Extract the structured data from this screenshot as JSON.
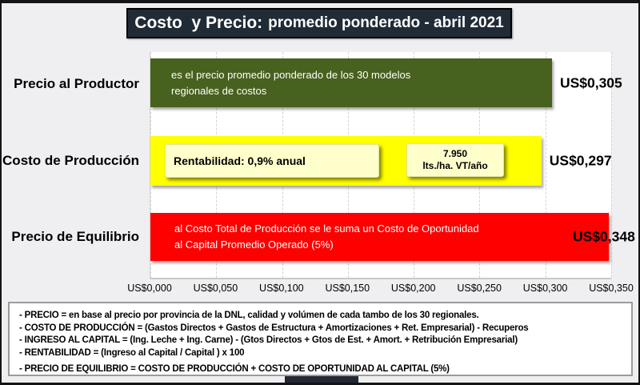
{
  "title": {
    "main": "Costo  y Precio:",
    "sub": "promedio ponderado - abril 2021"
  },
  "chart_data": {
    "type": "bar",
    "orientation": "horizontal",
    "title": "Costo  y Precio: promedio ponderado - abril 2021",
    "categories": [
      "Precio al Productor",
      "Costo de Producción",
      "Precio de Equilibrio"
    ],
    "values": [
      0.305,
      0.297,
      0.348
    ],
    "value_labels": [
      "US$0,305",
      "US$0,297",
      "US$0,348"
    ],
    "bar_colors": [
      "#47611e",
      "#ffff00",
      "#fe0000"
    ],
    "xlim": [
      0,
      0.35
    ],
    "x_ticks": [
      "US$0,000",
      "US$0,050",
      "US$0,100",
      "US$0,150",
      "US$0,200",
      "US$0,250",
      "US$0,300",
      "US$0,350"
    ],
    "grid": "vertical-dashed",
    "legend": "none",
    "annotations": {
      "bar1_note": "es el precio promedio ponderado de los 30 modelos\nregionales de costos",
      "bar2_box1": "Rentabilidad: 0,9% anual",
      "bar2_box2": "7.950\nlts./ha. VT/año",
      "bar3_note": "al Costo Total de Producción se le suma un Costo de Oportunidad\nal Capital Promedio Operado (5%)"
    }
  },
  "footnotes": {
    "lines": [
      "- PRECIO = en base al precio por provincia de la DNL, calidad y volúmen de cada tambo de los 30 regionales.",
      "- COSTO DE PRODUCCIÓN = (Gastos Directos + Gastos de Estructura + Amortizaciones + Ret. Empresarial) - Recuperos",
      "- INGRESO AL CAPITAL = (Ing. Leche + Ing. Carne) - (Gtos Directos + Gtos de Est. + Amort. + Retribución Empresarial)",
      "- RENTABILIDAD = (Ingreso al Capital / Capital ) x 100",
      "- PRECIO DE EQUILIBRIO = COSTO DE PRODUCCIÓN + COSTO DE OPORTUNIDAD AL CAPITAL (5%)"
    ]
  }
}
